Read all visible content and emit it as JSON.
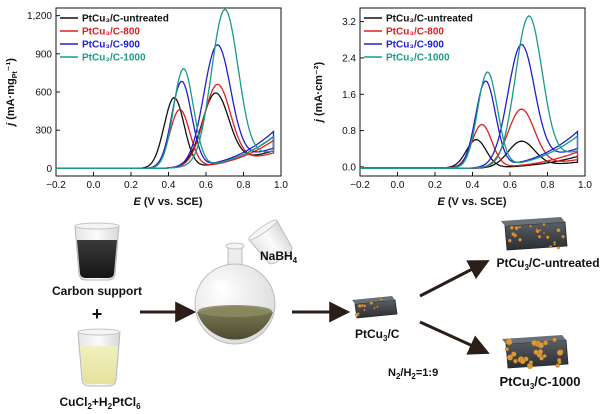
{
  "colors": {
    "untreated": "#111111",
    "c800": "#e02020",
    "c900": "#2020d0",
    "c1000": "#1a9a88",
    "arrow": "#2a1e18"
  },
  "chart_data": [
    {
      "type": "line",
      "ylabel_main": "j",
      "ylabel_units": "(mA·mg",
      "ylabel_sub": "Pt",
      "ylabel_close": "⁻¹)",
      "xlabel_main": "E",
      "xlabel_units": " (V vs. SCE)",
      "xlim": [
        -0.2,
        1.0
      ],
      "ylim": [
        -60,
        1260
      ],
      "xticks": [
        "-0.2",
        "0.0",
        "0.2",
        "0.4",
        "0.6",
        "0.8",
        "1.0"
      ],
      "xtick_values": [
        -0.2,
        0.0,
        0.2,
        0.4,
        0.6,
        0.8,
        1.0
      ],
      "yticks": [
        "0",
        "300",
        "600",
        "900",
        "1,200"
      ],
      "ytick_values": [
        0,
        300,
        600,
        900,
        1200
      ],
      "legend_position": "top-left",
      "series": [
        {
          "key": "untreated",
          "name": "PtCu₃/C-untreated",
          "forward_peak": [
            0.65,
            555
          ],
          "backward_peak": [
            0.43,
            555
          ],
          "end": [
            0.96,
            250
          ],
          "start": -0.2
        },
        {
          "key": "c800",
          "name": "PtCu₃/C-800",
          "forward_peak": [
            0.66,
            625
          ],
          "backward_peak": [
            0.46,
            460
          ],
          "end": [
            0.96,
            220
          ],
          "start": -0.2
        },
        {
          "key": "c900",
          "name": "PtCu₃/C-900",
          "forward_peak": [
            0.66,
            925
          ],
          "backward_peak": [
            0.47,
            680
          ],
          "end": [
            0.96,
            290
          ],
          "start": -0.2
        },
        {
          "key": "c1000",
          "name": "PtCu₃/C-1000",
          "forward_peak": [
            0.7,
            1200
          ],
          "backward_peak": [
            0.48,
            780
          ],
          "end": [
            0.96,
            250
          ],
          "start": -0.2
        }
      ]
    },
    {
      "type": "line",
      "ylabel_main": "j",
      "ylabel_units": "(mA·cm",
      "ylabel_sub": "",
      "ylabel_close": "⁻²)",
      "xlabel_main": "E",
      "xlabel_units": " (V vs. SCE)",
      "xlim": [
        -0.2,
        1.0
      ],
      "ylim": [
        -0.2,
        3.5
      ],
      "xticks": [
        "-0.2",
        "0.0",
        "0.2",
        "0.4",
        "0.6",
        "0.8",
        "1.0"
      ],
      "xtick_values": [
        -0.2,
        0.0,
        0.2,
        0.4,
        0.6,
        0.8,
        1.0
      ],
      "yticks": [
        "0.0",
        "0.8",
        "1.6",
        "2.4",
        "3.2"
      ],
      "ytick_values": [
        0.0,
        0.8,
        1.6,
        2.4,
        3.2
      ],
      "legend_position": "top-left",
      "series": [
        {
          "key": "untreated",
          "name": "PtCu₃/C-untreated",
          "forward_peak": [
            0.66,
            0.56
          ],
          "backward_peak": [
            0.42,
            0.62
          ],
          "end": [
            0.96,
            0.25
          ],
          "start": -0.2
        },
        {
          "key": "c800",
          "name": "PtCu₃/C-800",
          "forward_peak": [
            0.66,
            1.25
          ],
          "backward_peak": [
            0.45,
            0.95
          ],
          "end": [
            0.96,
            0.35
          ],
          "start": -0.2
        },
        {
          "key": "c900",
          "name": "PtCu₃/C-900",
          "forward_peak": [
            0.66,
            2.6
          ],
          "backward_peak": [
            0.47,
            1.9
          ],
          "end": [
            0.96,
            0.8
          ],
          "start": -0.2
        },
        {
          "key": "c1000",
          "name": "PtCu₃/C-1000",
          "forward_peak": [
            0.7,
            3.22
          ],
          "backward_peak": [
            0.48,
            2.1
          ],
          "end": [
            0.96,
            0.7
          ],
          "start": -0.2
        }
      ]
    }
  ],
  "schematic": {
    "carbon_support": "Carbon support",
    "plus": "+",
    "precursor_a": "CuCl",
    "precursor_a_sub": "2",
    "precursor_plus": "+H",
    "precursor_b_sub": "2",
    "precursor_b": "PtCl",
    "precursor_b_sub2": "6",
    "reductant": "NaBH",
    "reductant_sub": "4",
    "intermediate": "PtCu",
    "intermediate_sub": "3",
    "intermediate_suffix": "/C",
    "product_top": "PtCu",
    "product_top_sub": "3",
    "product_top_suffix": "/C-untreated",
    "product_bottom": "PtCu",
    "product_bottom_sub": "3",
    "product_bottom_suffix": "/C-1000",
    "atmosphere": "N",
    "atmosphere_sub1": "2",
    "atmosphere_mid": "/H",
    "atmosphere_sub2": "2",
    "atmosphere_ratio": "=1:9"
  }
}
